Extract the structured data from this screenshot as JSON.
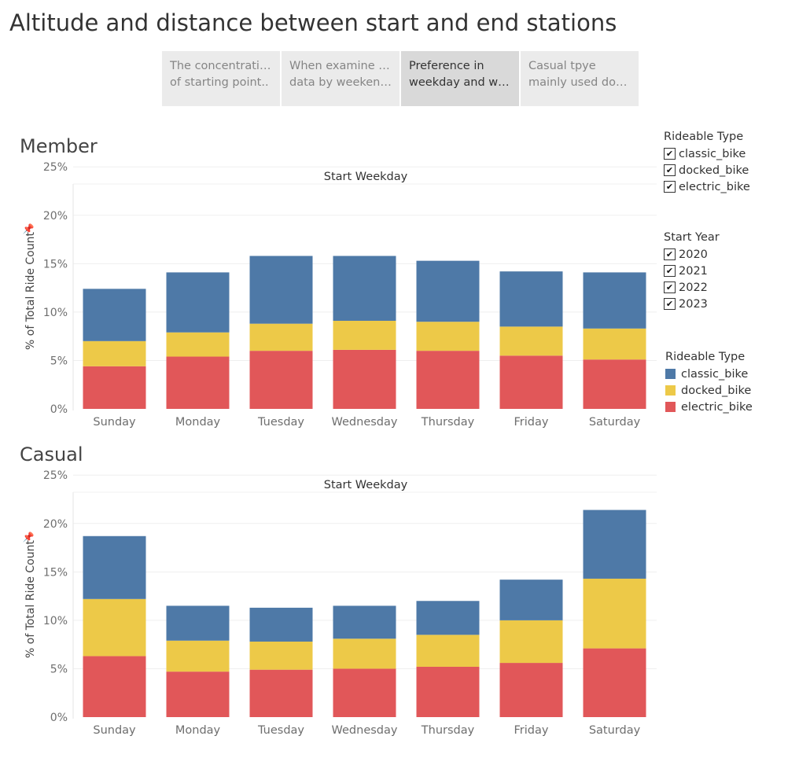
{
  "title": "Altitude and distance between start and end stations",
  "tabs": [
    {
      "line1": "The concentration",
      "line2": "of starting point..",
      "active": false
    },
    {
      "line1": "When examine the",
      "line2": "data by weekend..",
      "active": false
    },
    {
      "line1": "Preference in",
      "line2": "weekday and we..",
      "active": true
    },
    {
      "line1": "Casual tpye",
      "line2": "mainly used dock..",
      "active": false
    }
  ],
  "filters": {
    "rideable_type": {
      "title": "Rideable Type",
      "items": [
        "classic_bike",
        "docked_bike",
        "electric_bike"
      ]
    },
    "start_year": {
      "title": "Start Year",
      "items": [
        "2020",
        "2021",
        "2022",
        "2023"
      ]
    }
  },
  "legend": {
    "title": "Rideable Type",
    "items": [
      {
        "label": "classic_bike",
        "color": "#4e79a7"
      },
      {
        "label": "docked_bike",
        "color": "#edc948"
      },
      {
        "label": "electric_bike",
        "color": "#e15759"
      }
    ]
  },
  "chart_data": [
    {
      "type": "bar",
      "stacked": true,
      "panel_label": "Member",
      "title": "Start Weekday",
      "xlabel": "",
      "ylabel": "% of Total Ride Count",
      "ylim": [
        0,
        25
      ],
      "yticks": [
        "0%",
        "5%",
        "10%",
        "15%",
        "20%",
        "25%"
      ],
      "grid": true,
      "categories": [
        "Sunday",
        "Monday",
        "Tuesday",
        "Wednesday",
        "Thursday",
        "Friday",
        "Saturday"
      ],
      "series": [
        {
          "name": "electric_bike",
          "color": "#e15759",
          "values": [
            4.4,
            5.4,
            6.0,
            6.1,
            6.0,
            5.5,
            5.1
          ]
        },
        {
          "name": "docked_bike",
          "color": "#edc948",
          "values": [
            2.6,
            2.5,
            2.8,
            3.0,
            3.0,
            3.0,
            3.2
          ]
        },
        {
          "name": "classic_bike",
          "color": "#4e79a7",
          "values": [
            5.4,
            6.2,
            7.0,
            6.7,
            6.3,
            5.7,
            5.8
          ]
        }
      ]
    },
    {
      "type": "bar",
      "stacked": true,
      "panel_label": "Casual",
      "title": "Start Weekday",
      "xlabel": "",
      "ylabel": "% of Total Ride Count",
      "ylim": [
        0,
        25
      ],
      "yticks": [
        "0%",
        "5%",
        "10%",
        "15%",
        "20%",
        "25%"
      ],
      "grid": true,
      "categories": [
        "Sunday",
        "Monday",
        "Tuesday",
        "Wednesday",
        "Thursday",
        "Friday",
        "Saturday"
      ],
      "series": [
        {
          "name": "electric_bike",
          "color": "#e15759",
          "values": [
            6.3,
            4.7,
            4.9,
            5.0,
            5.2,
            5.6,
            7.1
          ]
        },
        {
          "name": "docked_bike",
          "color": "#edc948",
          "values": [
            5.9,
            3.2,
            2.9,
            3.1,
            3.3,
            4.4,
            7.2
          ]
        },
        {
          "name": "classic_bike",
          "color": "#4e79a7",
          "values": [
            6.5,
            3.6,
            3.5,
            3.4,
            3.5,
            4.2,
            7.1
          ]
        }
      ]
    }
  ]
}
